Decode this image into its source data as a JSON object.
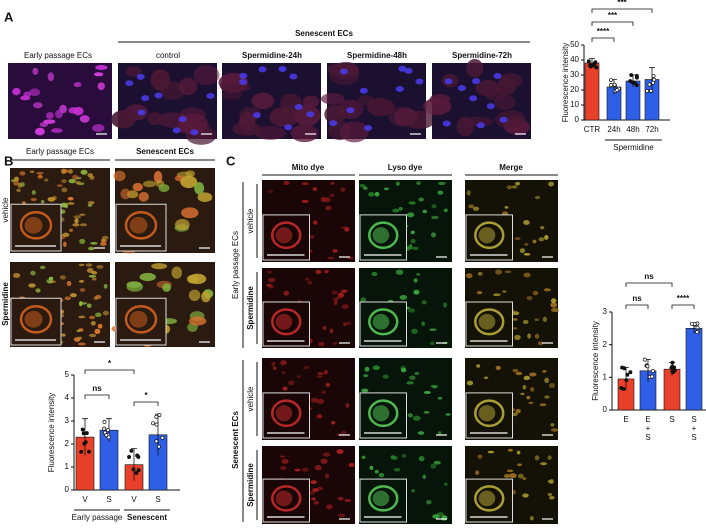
{
  "panels": {
    "A": {
      "label": "A",
      "group_header": "Senescent ECs",
      "image_labels": [
        "Early passage ECs",
        "control",
        "Spermidine-24h",
        "Spermidine-48h",
        "Spermidine-72h"
      ]
    },
    "B": {
      "label": "B",
      "columns": [
        "Early passage ECs",
        "Senescent ECs"
      ],
      "rows": [
        "vehicle",
        "Spermidine"
      ]
    },
    "C": {
      "label": "C",
      "columns": [
        "Mito dye",
        "Lyso dye",
        "Merge"
      ],
      "groups": [
        "Early passage ECs",
        "Senescent ECs"
      ],
      "rows": [
        "vehicle",
        "Spermidine",
        "vehicle",
        "Spermidine"
      ]
    }
  },
  "chart_data": [
    {
      "type": "bar",
      "ylabel": "Fluorescence intensity",
      "categories": [
        "CTR",
        "24h",
        "48h",
        "72h"
      ],
      "values": [
        38,
        22,
        26,
        27
      ],
      "errors": [
        3,
        5,
        4,
        8
      ],
      "bar_colors": [
        "#e8402a",
        "#2f5fe6",
        "#2f5fe6",
        "#2f5fe6"
      ],
      "ylim": [
        0,
        50
      ],
      "yticks": [
        0,
        10,
        20,
        30,
        40,
        50
      ],
      "annotations": [
        "****",
        "***",
        "***"
      ],
      "group_labels": [
        "Spermidine"
      ]
    },
    {
      "type": "bar",
      "ylabel": "Fluorescence intensity",
      "categories": [
        "V",
        "S",
        "V",
        "S"
      ],
      "values": [
        2.3,
        2.6,
        1.1,
        2.4
      ],
      "errors": [
        0.8,
        0.5,
        0.7,
        0.9
      ],
      "bar_colors": [
        "#e8402a",
        "#2f5fe6",
        "#e8402a",
        "#2f5fe6"
      ],
      "ylim": [
        0,
        5
      ],
      "yticks": [
        0,
        1,
        2,
        3,
        4,
        5
      ],
      "annotations": [
        "ns",
        "*",
        "*"
      ],
      "group_labels": [
        "Early passage",
        "Senescent"
      ]
    },
    {
      "type": "bar",
      "ylabel": "Fluorescence intensity",
      "categories": [
        "E",
        "E + S",
        "S",
        "S + S"
      ],
      "values": [
        0.95,
        1.2,
        1.25,
        2.5
      ],
      "errors": [
        0.35,
        0.35,
        0.2,
        0.15
      ],
      "bar_colors": [
        "#e8402a",
        "#2f5fe6",
        "#e8402a",
        "#2f5fe6"
      ],
      "ylim": [
        0,
        3
      ],
      "yticks": [
        0,
        1,
        2,
        3
      ],
      "annotations": [
        "ns",
        "ns",
        "****"
      ],
      "group_labels": []
    }
  ]
}
